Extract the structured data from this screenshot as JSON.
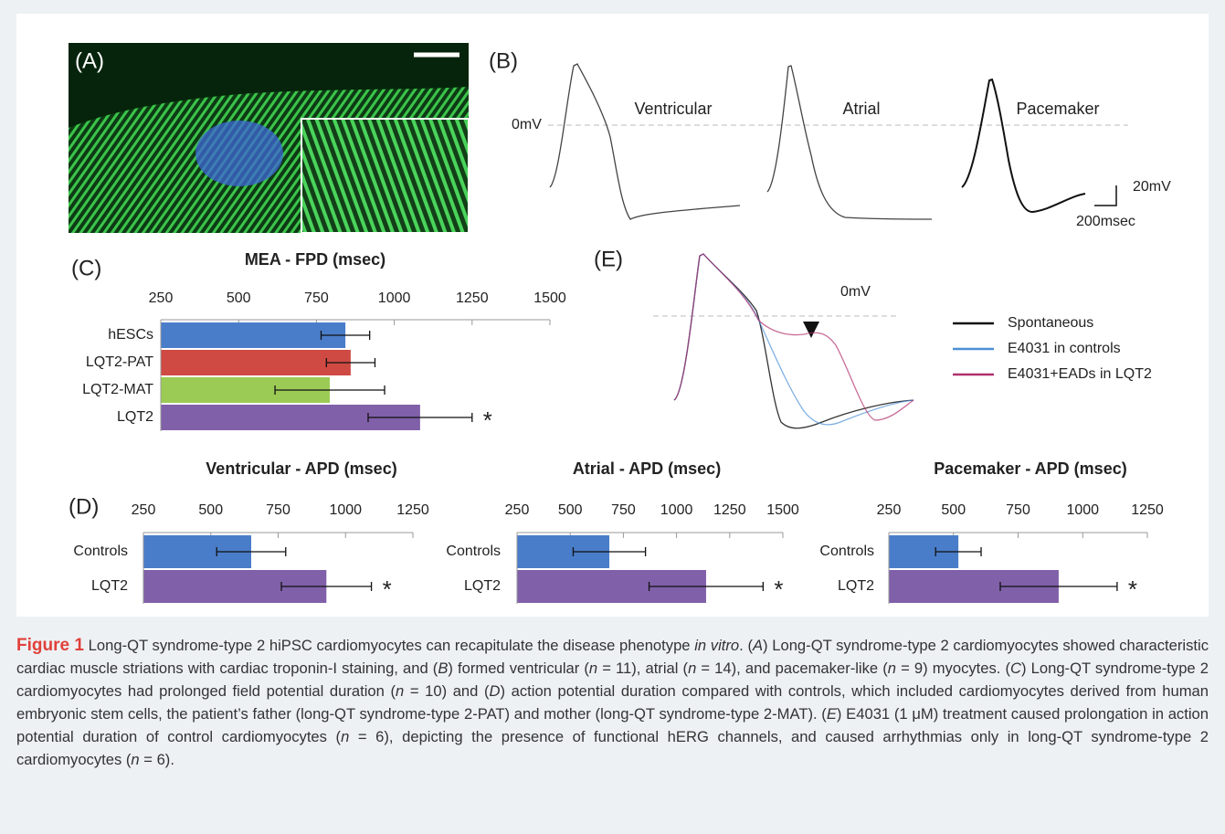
{
  "panels": {
    "A": {
      "label": "(A)"
    },
    "B": {
      "label": "(B)",
      "zero_label": "0mV",
      "trace_labels": [
        "Ventricular",
        "Atrial",
        "Pacemaker"
      ],
      "scale_v": "20mV",
      "scale_t": "200msec"
    },
    "E": {
      "label": "(E)",
      "zero_label": "0mV",
      "legend": [
        {
          "name": "Spontaneous",
          "color": "#111111"
        },
        {
          "name": "E4031 in controls",
          "color": "#4a8fd6"
        },
        {
          "name": "E4031+EADs in LQT2",
          "color": "#b0306e"
        }
      ]
    }
  },
  "chart_data": [
    {
      "type": "bar",
      "orientation": "horizontal",
      "panel_label": "(C)",
      "title": "MEA - FPD (msec)",
      "categories": [
        "hESCs",
        "LQT2-PAT",
        "LQT2-MAT",
        "LQT2"
      ],
      "values": [
        843,
        860,
        793,
        1083
      ],
      "errors": [
        78,
        78,
        176,
        167
      ],
      "colors": [
        "#4a7dc9",
        "#cf4a43",
        "#9ccb55",
        "#8060a9"
      ],
      "xlim": [
        250,
        1500
      ],
      "xticks": [
        250,
        500,
        750,
        1000,
        1250,
        1500
      ],
      "annotations": [
        {
          "category": "LQT2",
          "text": "*"
        }
      ]
    },
    {
      "type": "bar",
      "orientation": "horizontal",
      "panel_label": "(D)",
      "title": "Ventricular - APD (msec)",
      "categories": [
        "Controls",
        "LQT2"
      ],
      "values": [
        650,
        929
      ],
      "errors": [
        128,
        167
      ],
      "colors": [
        "#4a7dc9",
        "#8060a9"
      ],
      "xlim": [
        250,
        1250
      ],
      "xticks": [
        250,
        500,
        750,
        1000,
        1250
      ],
      "annotations": [
        {
          "category": "LQT2",
          "text": "*"
        }
      ]
    },
    {
      "type": "bar",
      "orientation": "horizontal",
      "title": "Atrial - APD (msec)",
      "categories": [
        "Controls",
        "LQT2"
      ],
      "values": [
        684,
        1139
      ],
      "errors": [
        170,
        268
      ],
      "colors": [
        "#4a7dc9",
        "#8060a9"
      ],
      "xlim": [
        250,
        1500
      ],
      "xticks": [
        250,
        500,
        750,
        1000,
        1250,
        1500
      ],
      "annotations": [
        {
          "category": "LQT2",
          "text": "*"
        }
      ]
    },
    {
      "type": "bar",
      "orientation": "horizontal",
      "title": "Pacemaker - APD (msec)",
      "categories": [
        "Controls",
        "LQT2"
      ],
      "values": [
        519,
        907
      ],
      "errors": [
        88,
        226
      ],
      "colors": [
        "#4a7dc9",
        "#8060a9"
      ],
      "xlim": [
        250,
        1250
      ],
      "xticks": [
        250,
        500,
        750,
        1000,
        1250
      ],
      "annotations": [
        {
          "category": "LQT2",
          "text": "*"
        }
      ]
    }
  ],
  "caption": {
    "label": "Figure 1",
    "segments": [
      {
        "text": " Long-QT syndrome-type 2 hiPSC cardiomyocytes can recapitulate the disease phenotype "
      },
      {
        "text": "in vitro",
        "italic": true
      },
      {
        "text": ". ("
      },
      {
        "text": "A",
        "italic": true
      },
      {
        "text": ") Long-QT syndrome-type 2 cardiomyocytes showed characteristic cardiac muscle striations with cardiac troponin-I staining, and ("
      },
      {
        "text": "B",
        "italic": true
      },
      {
        "text": ") formed ventricular ("
      },
      {
        "text": "n",
        "italic": true
      },
      {
        "text": " = 11), atrial ("
      },
      {
        "text": "n",
        "italic": true
      },
      {
        "text": " = 14), and pacemaker-like ("
      },
      {
        "text": "n",
        "italic": true
      },
      {
        "text": " = 9) myocytes. ("
      },
      {
        "text": "C",
        "italic": true
      },
      {
        "text": ") Long-QT syndrome-type 2 cardiomyocytes had prolonged field potential duration ("
      },
      {
        "text": "n",
        "italic": true
      },
      {
        "text": " = 10) and ("
      },
      {
        "text": "D",
        "italic": true
      },
      {
        "text": ") action potential duration compared with controls, which included cardiomyocytes derived from human embryonic stem cells, the patient’s father (long-QT syndrome-type 2-PAT) and mother (long-QT syndrome-type 2-MAT). ("
      },
      {
        "text": "E",
        "italic": true
      },
      {
        "text": ") E4031 (1 μM) treatment caused prolongation in action potential duration of control cardiomyocytes ("
      },
      {
        "text": "n",
        "italic": true
      },
      {
        "text": " = 6), depicting the presence of functional hERG channels, and caused arrhythmias only in long-QT syndrome-type 2 cardiomyocytes ("
      },
      {
        "text": "n",
        "italic": true
      },
      {
        "text": " = 6)."
      }
    ]
  }
}
